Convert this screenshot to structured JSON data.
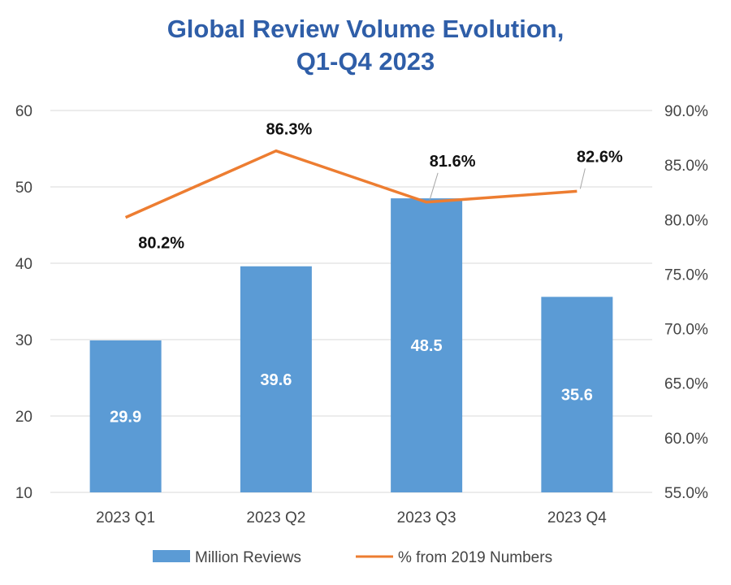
{
  "chart_data": {
    "type": "bar",
    "title_lines": [
      "Global Review Volume Evolution,",
      "Q1-Q4 2023"
    ],
    "categories": [
      "2023 Q1",
      "2023 Q2",
      "2023 Q3",
      "2023 Q4"
    ],
    "series": [
      {
        "name": "Million Reviews",
        "type": "bar",
        "axis": "left",
        "color": "#5b9bd5",
        "values": [
          29.9,
          39.6,
          48.5,
          35.6
        ],
        "labels": [
          "29.9",
          "39.6",
          "48.5",
          "35.6"
        ]
      },
      {
        "name": "% from 2019 Numbers",
        "type": "line",
        "axis": "right",
        "color": "#ed7d31",
        "values": [
          80.2,
          86.3,
          81.6,
          82.6
        ],
        "labels": [
          "80.2%",
          "86.3%",
          "81.6%",
          "82.6%"
        ]
      }
    ],
    "left_axis": {
      "min": 10,
      "max": 60,
      "ticks": [
        10,
        20,
        30,
        40,
        50,
        60
      ],
      "tick_labels": [
        "10",
        "20",
        "30",
        "40",
        "50",
        "60"
      ]
    },
    "right_axis": {
      "min": 55,
      "max": 90,
      "ticks": [
        55,
        60,
        65,
        70,
        75,
        80,
        85,
        90
      ],
      "tick_labels": [
        "55.0%",
        "60.0%",
        "65.0%",
        "70.0%",
        "75.0%",
        "80.0%",
        "85.0%",
        "90.0%"
      ]
    },
    "grid": true,
    "legend_position": "bottom"
  }
}
